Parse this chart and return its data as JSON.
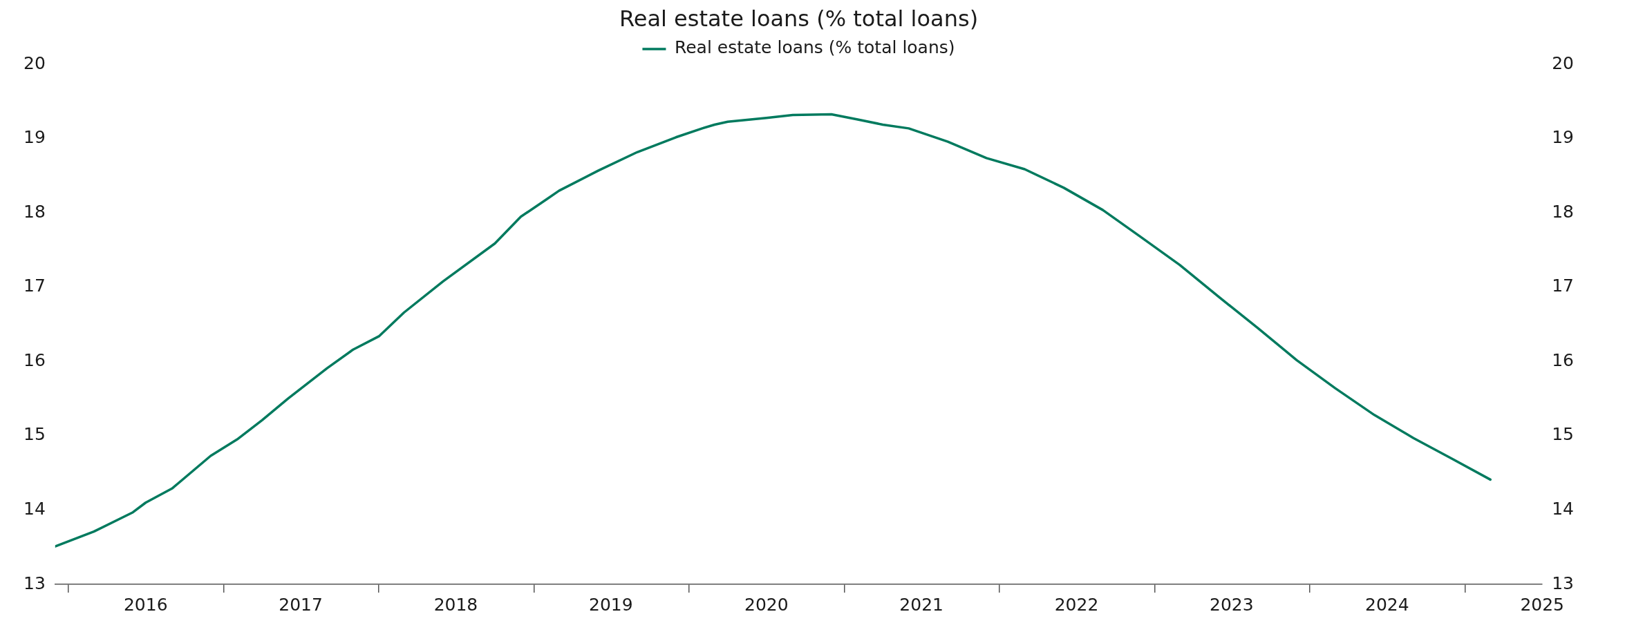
{
  "chart_data": {
    "type": "line",
    "title": "Real estate loans (% total loans)",
    "legend": "top",
    "x": [
      "2015-12",
      "2016-03",
      "2016-06",
      "2016-07",
      "2016-09",
      "2016-12",
      "2017-02",
      "2017-04",
      "2017-06",
      "2017-09",
      "2017-11",
      "2018-01",
      "2018-03",
      "2018-06",
      "2018-10",
      "2018-12",
      "2019-02",
      "2019-03",
      "2019-06",
      "2019-09",
      "2019-12",
      "2020-02",
      "2020-03",
      "2020-04",
      "2020-07",
      "2020-09",
      "2020-12",
      "2021-02",
      "2021-04",
      "2021-06",
      "2021-09",
      "2021-12",
      "2022-03",
      "2022-06",
      "2022-09",
      "2022-12",
      "2023-03",
      "2023-06",
      "2023-09",
      "2023-12",
      "2024-03",
      "2024-06",
      "2024-09",
      "2024-12",
      "2025-03"
    ],
    "series": [
      {
        "name": "Real estate loans (% total loans)",
        "color": "#007a5e",
        "values": [
          13.51,
          13.71,
          13.97,
          14.1,
          14.29,
          14.73,
          14.95,
          15.21,
          15.5,
          15.91,
          16.16,
          16.34,
          16.66,
          17.08,
          17.59,
          17.95,
          18.19,
          18.3,
          18.57,
          18.82,
          19.02,
          19.14,
          19.19,
          19.23,
          19.28,
          19.32,
          19.33,
          19.26,
          19.19,
          19.14,
          18.96,
          18.74,
          18.59,
          18.34,
          18.04,
          17.67,
          17.3,
          16.87,
          16.45,
          16.02,
          15.64,
          15.28,
          14.97,
          14.69,
          14.41
        ]
      }
    ],
    "xlim": [
      "2015-12",
      "2025-07"
    ],
    "xticks": [
      {
        "value": "2016-01",
        "label": null
      },
      {
        "value": "2016-07",
        "label": "2016"
      },
      {
        "value": "2017-01",
        "label": null
      },
      {
        "value": "2017-07",
        "label": "2017"
      },
      {
        "value": "2018-01",
        "label": null
      },
      {
        "value": "2018-07",
        "label": "2018"
      },
      {
        "value": "2019-01",
        "label": null
      },
      {
        "value": "2019-07",
        "label": "2019"
      },
      {
        "value": "2020-01",
        "label": null
      },
      {
        "value": "2020-07",
        "label": "2020"
      },
      {
        "value": "2021-01",
        "label": null
      },
      {
        "value": "2021-07",
        "label": "2021"
      },
      {
        "value": "2022-01",
        "label": null
      },
      {
        "value": "2022-07",
        "label": "2022"
      },
      {
        "value": "2023-01",
        "label": null
      },
      {
        "value": "2023-07",
        "label": "2023"
      },
      {
        "value": "2024-01",
        "label": null
      },
      {
        "value": "2024-07",
        "label": "2024"
      },
      {
        "value": "2025-01",
        "label": null
      },
      {
        "value": "2025-07",
        "label": "2025"
      }
    ],
    "ylim": [
      13,
      20
    ],
    "yticks": [
      13,
      14,
      15,
      16,
      17,
      18,
      19,
      20
    ],
    "y2lim": [
      13,
      20
    ],
    "y2ticks": [
      13,
      14,
      15,
      16,
      17,
      18,
      19,
      20
    ],
    "grid": false,
    "marker": "none",
    "line_style": "solid"
  }
}
